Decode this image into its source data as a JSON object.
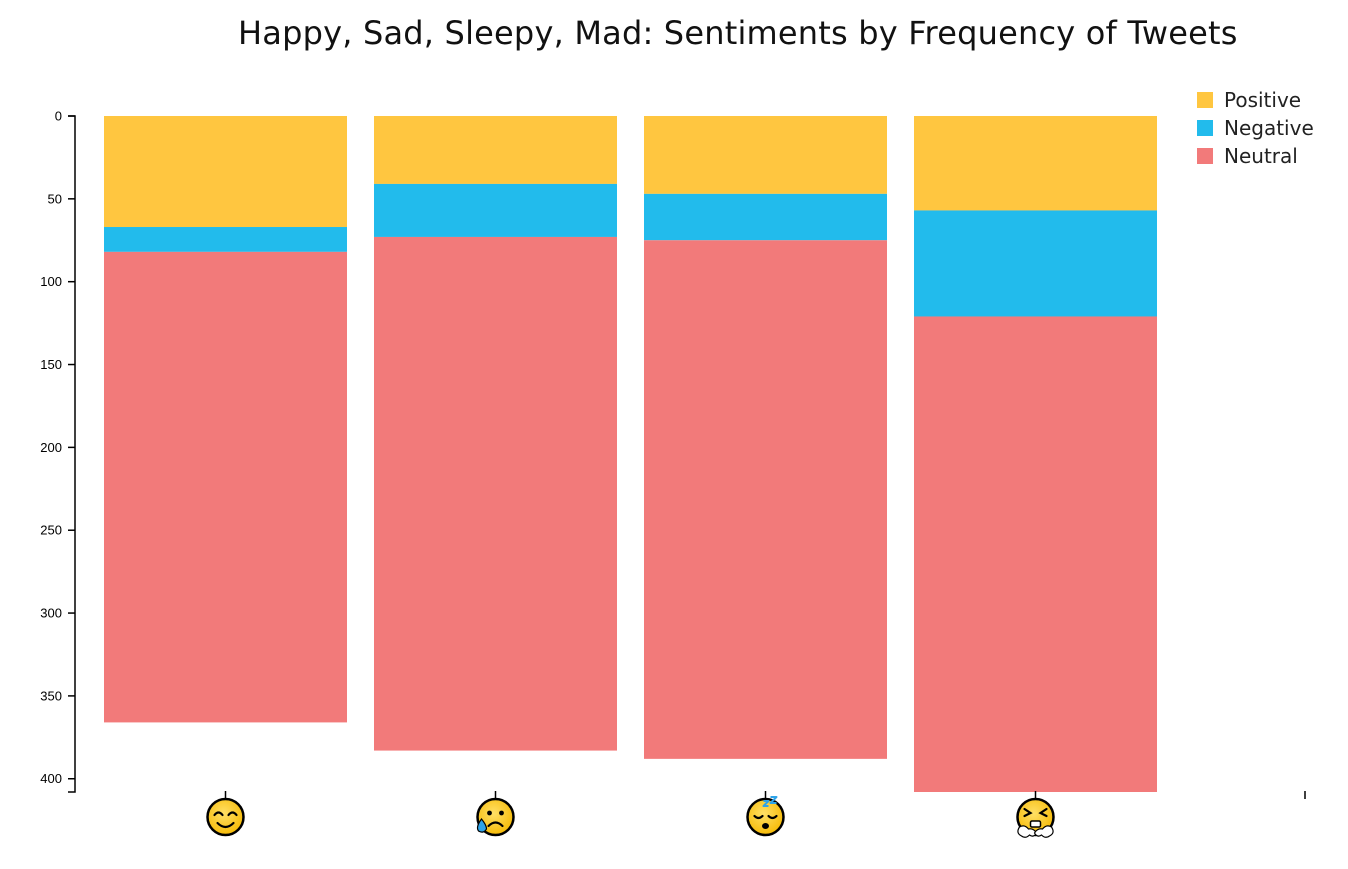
{
  "chart_data": {
    "type": "bar",
    "stacked": true,
    "title": "Happy, Sad, Sleepy, Mad: Sentiments by Frequency of Tweets",
    "xlabel": "",
    "ylabel": "",
    "y_axis_orientation": "inverted",
    "ylim": [
      0,
      408
    ],
    "y_ticks": [
      0,
      50,
      100,
      150,
      200,
      250,
      300,
      350,
      400
    ],
    "categories": [
      "happy",
      "sad",
      "sleepy",
      "mad"
    ],
    "category_icons": [
      "smiling-face-icon",
      "sad-sweat-face-icon",
      "sleepy-face-icon",
      "angry-steam-face-icon"
    ],
    "series": [
      {
        "name": "Positive",
        "color": "#FFC640",
        "values": [
          67,
          41,
          47,
          57
        ]
      },
      {
        "name": "Negative",
        "color": "#22BBEC",
        "values": [
          15,
          32,
          28,
          64
        ]
      },
      {
        "name": "Neutral",
        "color": "#F27A7A",
        "values": [
          284,
          310,
          313,
          287
        ]
      }
    ],
    "grid": false,
    "legend_position": "top-right"
  }
}
